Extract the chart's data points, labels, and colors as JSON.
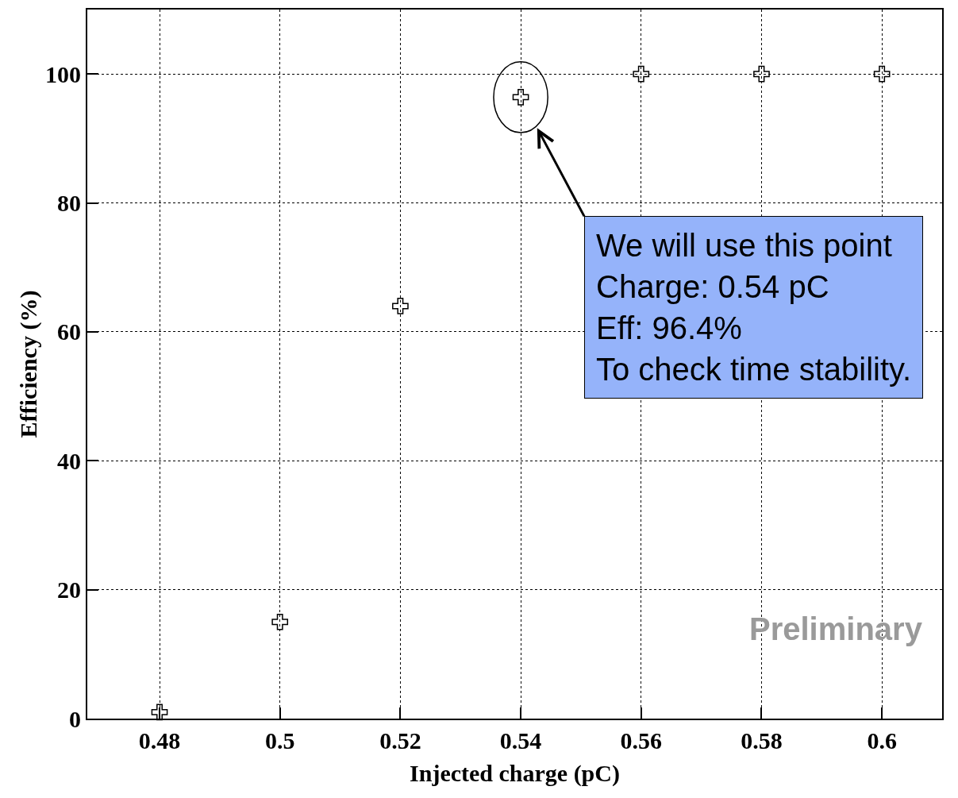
{
  "chart_data": {
    "type": "scatter",
    "xlabel": "Injected charge (pC)",
    "ylabel": "Efficiency (%)",
    "x": [
      0.48,
      0.5,
      0.52,
      0.54,
      0.56,
      0.58,
      0.6
    ],
    "series": [
      {
        "color": "#000000",
        "values": [
          1,
          15,
          64,
          96.4,
          100,
          100,
          100
        ]
      }
    ],
    "xlim": [
      0.468,
      0.61
    ],
    "xticks": [
      0.48,
      {
        "value": 0.5,
        "label": "0.5"
      },
      0.52,
      0.54,
      0.56,
      0.58,
      {
        "value": 0.6,
        "label": "0.6"
      }
    ],
    "ylim": [
      0,
      110
    ],
    "yticks": [
      0,
      20,
      40,
      60,
      80,
      100
    ],
    "grid": true,
    "marker": "cross",
    "annotations": [
      {
        "text": "We will use this point\nCharge: 0.54 pC\nEff: 96.4%\nTo check time stability.",
        "x": 0.54,
        "y": 96.4
      },
      "Preliminary"
    ]
  }
}
